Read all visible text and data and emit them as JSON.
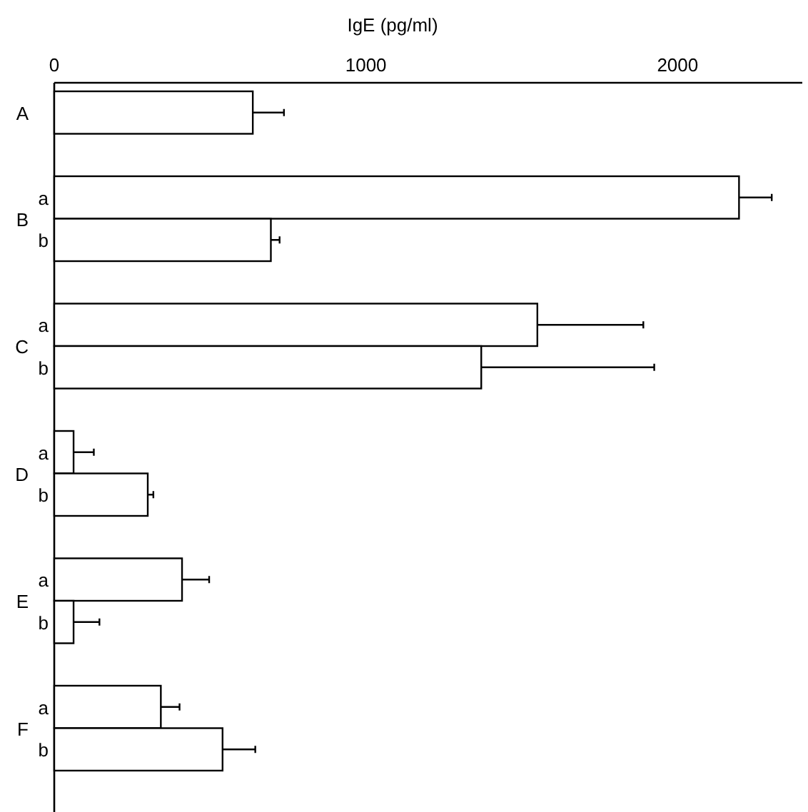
{
  "chart_data": {
    "type": "bar",
    "orientation": "horizontal",
    "xlabel": "IgE (pg/ml)",
    "categories": [
      "A",
      null,
      "a",
      "b",
      null,
      "a",
      "b",
      null,
      "a",
      "b",
      null,
      "a",
      "b",
      null,
      "a",
      "b"
    ],
    "values": [
      637,
      null,
      2197,
      695,
      null,
      1550,
      1370,
      null,
      62,
      300,
      null,
      410,
      62,
      null,
      342,
      540
    ],
    "errors": [
      100,
      null,
      105,
      28,
      null,
      340,
      555,
      null,
      65,
      18,
      null,
      87,
      83,
      null,
      60,
      105
    ],
    "color": "#ffffff",
    "xlim": [
      0,
      2400
    ],
    "xticks": [
      0,
      1000,
      2000
    ],
    "annotations": [
      "B",
      "C",
      "D",
      "E",
      "F"
    ]
  }
}
